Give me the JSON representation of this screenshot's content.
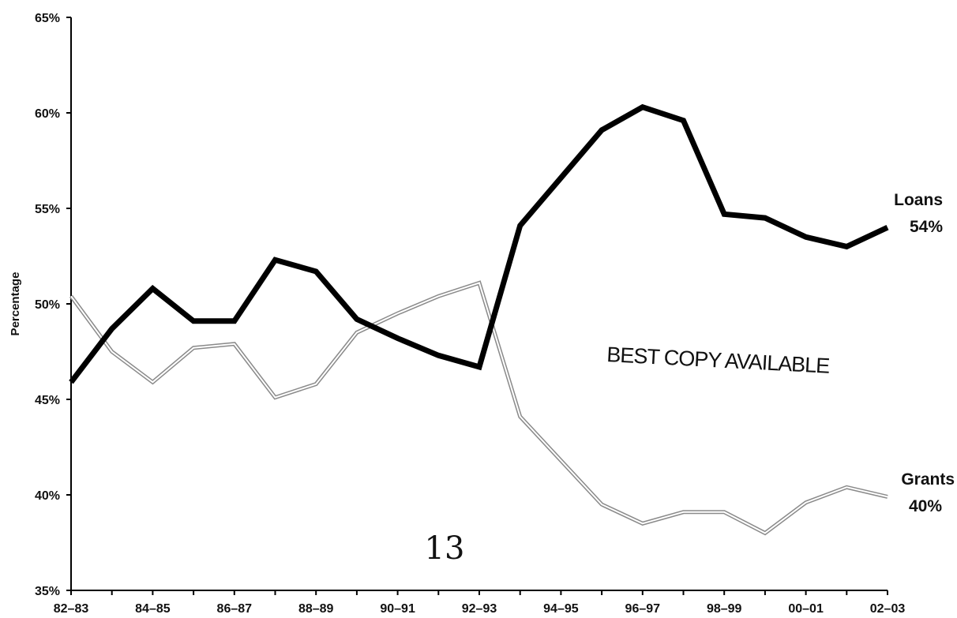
{
  "chart_data": {
    "type": "line",
    "title": "",
    "xlabel": "",
    "ylabel": "Percentage",
    "ylim": [
      35,
      65
    ],
    "y_ticks": [
      35,
      40,
      45,
      50,
      55,
      60,
      65
    ],
    "y_tick_labels": [
      "35%",
      "40%",
      "45%",
      "50%",
      "55%",
      "60%",
      "65%"
    ],
    "x": [
      "82–83",
      "83–84",
      "84–85",
      "85–86",
      "86–87",
      "87–88",
      "88–89",
      "89–90",
      "90–91",
      "91–92",
      "92–93",
      "93–94",
      "94–95",
      "95–96",
      "96–97",
      "97–98",
      "98–99",
      "99–00",
      "00–01",
      "01–02",
      "02–03"
    ],
    "x_tick_labels": [
      "82–83",
      "84–85",
      "86–87",
      "88–89",
      "90–91",
      "92–93",
      "94–95",
      "96–97",
      "98–99",
      "00–01",
      "02–03"
    ],
    "grid": false,
    "series": [
      {
        "name": "Loans",
        "end_label": "54%",
        "color": "#000000",
        "values": [
          45.9,
          48.7,
          50.8,
          49.1,
          49.1,
          52.3,
          51.7,
          49.2,
          48.2,
          47.3,
          46.7,
          54.1,
          56.6,
          59.1,
          60.3,
          59.6,
          54.7,
          54.5,
          53.5,
          53.0,
          54.0
        ]
      },
      {
        "name": "Grants",
        "end_label": "40%",
        "color": "#aaaaaa",
        "values": [
          50.4,
          47.5,
          45.9,
          47.7,
          47.9,
          45.1,
          45.8,
          48.5,
          49.5,
          50.4,
          51.1,
          44.1,
          41.8,
          39.5,
          38.5,
          39.1,
          39.1,
          38.0,
          39.6,
          40.4,
          39.9
        ]
      }
    ],
    "annotations": [
      "BEST COPY AVAILABLE",
      "13"
    ]
  }
}
